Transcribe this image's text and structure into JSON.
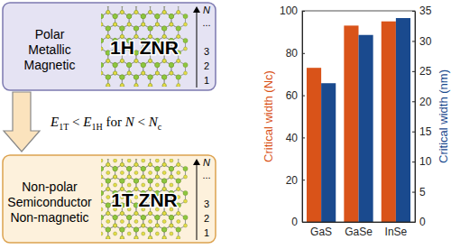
{
  "chart_data": {
    "type": "bar",
    "categories": [
      "GaS",
      "GaSe",
      "InSe"
    ],
    "ylabel": "Critical width (Nc)",
    "y2label": "Critical width (nm)",
    "series": [
      {
        "color": "#d95319",
        "values": [
          73,
          93,
          95
        ]
      },
      {
        "color": "#1a4a8e",
        "values": [
          23,
          31,
          33.8
        ],
        "axis": "y2"
      }
    ],
    "ylim": [
      0,
      100
    ],
    "yticks": [
      0,
      20,
      40,
      60,
      80,
      100
    ],
    "y2lim": [
      0,
      35
    ],
    "y2ticks": [
      0,
      5,
      10,
      15,
      20,
      25,
      30,
      35
    ],
    "grid": false
  },
  "diagram": {
    "top": {
      "properties": [
        "Polar",
        "Metallic",
        "Magnetic"
      ],
      "label": "1H ZNR",
      "rows": [
        "N",
        "...",
        "3",
        "2",
        "1"
      ]
    },
    "arrow": {
      "condition": [
        {
          "text": "E",
          "style": "italic"
        },
        {
          "text": "1T",
          "style": "sub"
        },
        {
          "text": " < "
        },
        {
          "text": "E",
          "style": "italic"
        },
        {
          "text": "1H",
          "style": "sub"
        },
        {
          "text": "  for  "
        },
        {
          "text": "N",
          "style": "italic"
        },
        {
          "text": " < "
        },
        {
          "text": "N",
          "style": "italic"
        },
        {
          "text": "c",
          "style": "sub"
        }
      ]
    },
    "bottom": {
      "properties": [
        "Non-polar",
        "Semiconductor",
        "Non-magnetic"
      ],
      "label": "1T ZNR",
      "rows": [
        "N",
        "...",
        "3",
        "2",
        "1"
      ]
    }
  }
}
